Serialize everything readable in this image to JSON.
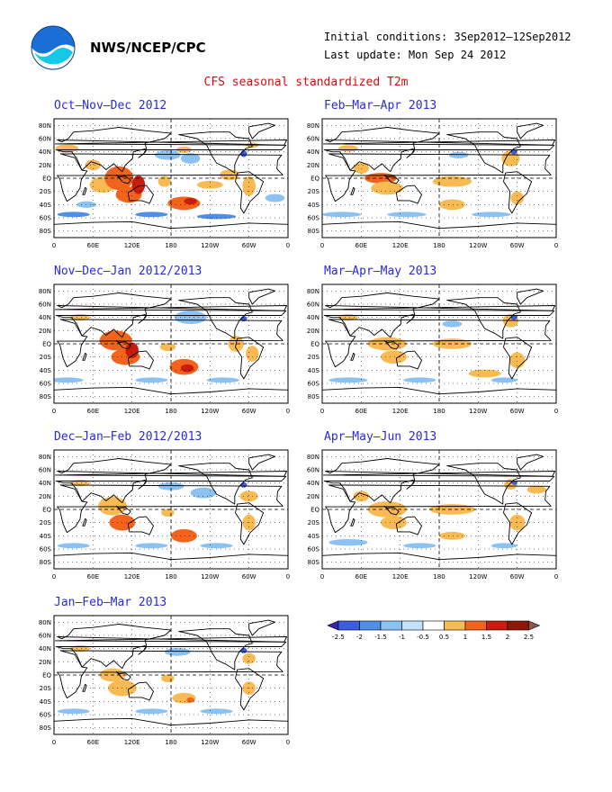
{
  "header": {
    "agency": "NWS/NCEP/CPC",
    "initial_conditions": "Initial conditions: 3Sep2012–12Sep2012",
    "last_update": "Last update: Mon Sep 24 2012",
    "title": "CFS seasonal standardized T2m"
  },
  "axes": {
    "lat_labels": [
      "80N",
      "60N",
      "40N",
      "20N",
      "EQ",
      "20S",
      "40S",
      "60S",
      "80S"
    ],
    "lon_labels": [
      "0",
      "60E",
      "120E",
      "180",
      "120W",
      "60W",
      "0"
    ]
  },
  "panels": [
    {
      "id": "ond",
      "title": "Oct–Nov–Dec 2012"
    },
    {
      "id": "fma",
      "title": "Feb–Mar–Apr 2013"
    },
    {
      "id": "ndj",
      "title": "Nov–Dec–Jan 2012/2013"
    },
    {
      "id": "mam",
      "title": "Mar–Apr–May 2013"
    },
    {
      "id": "djf",
      "title": "Dec–Jan–Feb 2012/2013"
    },
    {
      "id": "amj",
      "title": "Apr–May–Jun 2013"
    },
    {
      "id": "jfm",
      "title": "Jan–Feb–Mar 2013"
    }
  ],
  "legend": {
    "labels": [
      "-2.5",
      "-2",
      "-1.5",
      "-1",
      "-0.5",
      "0.5",
      "1",
      "1.5",
      "2",
      "2.5"
    ],
    "colors": [
      "#3a1fb8",
      "#3d5de0",
      "#4f8fe8",
      "#8cc2f2",
      "#c4e3fa",
      "#ffffff",
      "#f8ba52",
      "#f2641c",
      "#c81c0c",
      "#8c1808",
      "#905848"
    ]
  },
  "colors": {
    "title": "#d01010",
    "panel_title": "#2a2ad8",
    "warm": "#f8ba52",
    "hot": "#f2641c",
    "cool": "#8cc2f2",
    "cold": "#4f8fe8"
  }
}
